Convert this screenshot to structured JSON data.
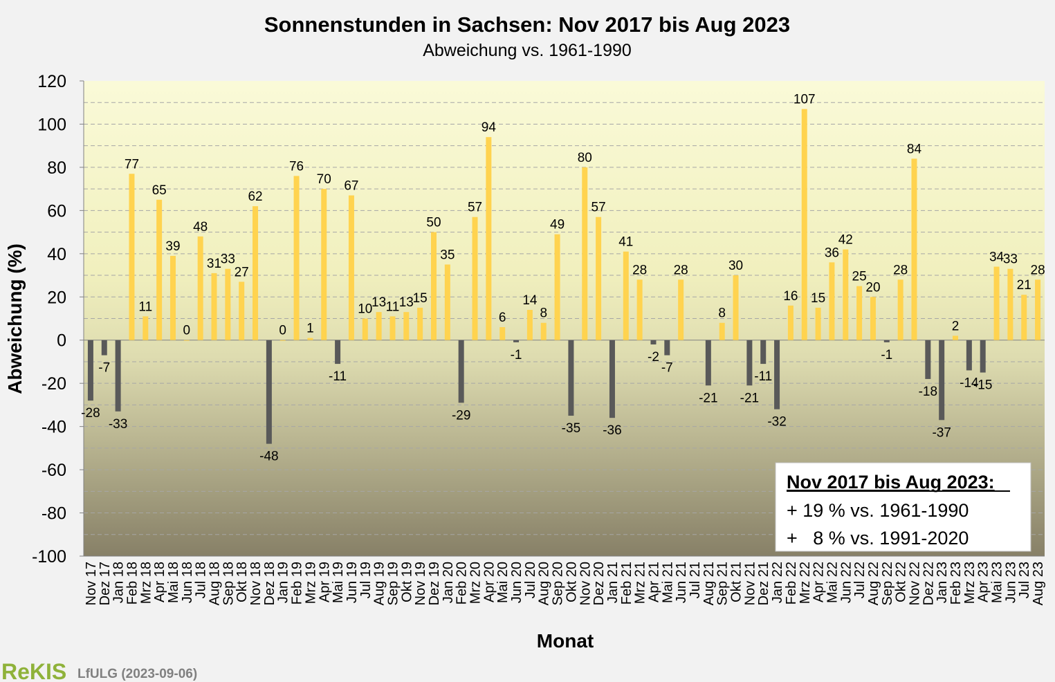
{
  "chart_data": {
    "type": "bar",
    "title": "Sonnenstunden in Sachsen: Nov 2017 bis Aug 2023",
    "subtitle": "Abweichung vs. 1961-1990",
    "xlabel": "Monat",
    "ylabel": "Abweichung (%)",
    "ylim": [
      -100,
      120
    ],
    "yticks": [
      "120",
      "100",
      "80",
      "60",
      "40",
      "20",
      "0",
      "-20",
      "-40",
      "-60",
      "-80",
      "-100"
    ],
    "grid": "dashed horizontal",
    "colors": {
      "positive": "#ffd34f",
      "negative": "#595959"
    },
    "categories": [
      "Nov 17",
      "Dez 17",
      "Jan 18",
      "Feb 18",
      "Mrz 18",
      "Apr 18",
      "Mai 18",
      "Jun 18",
      "Jul 18",
      "Aug 18",
      "Sep 18",
      "Okt 18",
      "Nov 18",
      "Dez 18",
      "Jan 19",
      "Feb 19",
      "Mrz 19",
      "Apr 19",
      "Mai 19",
      "Jun 19",
      "Jul 19",
      "Aug 19",
      "Sep 19",
      "Okt 19",
      "Nov 19",
      "Dez 19",
      "Jan 20",
      "Feb 20",
      "Mrz 20",
      "Apr 20",
      "Mai 20",
      "Jun 20",
      "Jul 20",
      "Aug 20",
      "Sep 20",
      "Okt 20",
      "Nov 20",
      "Dez 20",
      "Jan 21",
      "Feb 21",
      "Mrz 21",
      "Apr 21",
      "Mai 21",
      "Jun 21",
      "Jul 21",
      "Aug 21",
      "Sep 21",
      "Okt 21",
      "Nov 21",
      "Dez 21",
      "Jan 22",
      "Feb 22",
      "Mrz 22",
      "Apr 22",
      "Mai 22",
      "Jun 22",
      "Jul 22",
      "Aug 22",
      "Sep 22",
      "Okt 22",
      "Nov 22",
      "Dez 22",
      "Jan 23",
      "Feb 23",
      "Mrz 23",
      "Apr 23",
      "Mai 23",
      "Jun 23",
      "Jul 23",
      "Aug 23"
    ],
    "values": [
      -28,
      -7,
      -33,
      77,
      11,
      65,
      39,
      0,
      48,
      31,
      33,
      27,
      62,
      -48,
      0,
      76,
      1,
      70,
      -11,
      67,
      10,
      13,
      11,
      13,
      15,
      50,
      35,
      -29,
      57,
      94,
      6,
      -1,
      14,
      8,
      49,
      -35,
      80,
      57,
      -36,
      41,
      28,
      -2,
      -7,
      28,
      null,
      -21,
      8,
      30,
      -21,
      -11,
      -32,
      16,
      107,
      15,
      36,
      42,
      25,
      20,
      -1,
      28,
      84,
      -18,
      -37,
      2,
      -14,
      -15,
      34,
      33,
      21,
      28
    ],
    "labels": [
      "-28",
      "-7",
      "-33",
      "77",
      "11",
      "65",
      "39",
      "0",
      "48",
      "31",
      "33",
      "27",
      "62",
      "-48",
      "0",
      "76",
      "1",
      "70",
      "-11",
      "67",
      "10",
      "13",
      "11",
      "13",
      "15",
      "50",
      "35",
      "-29",
      "57",
      "94",
      "6",
      "-1",
      "14",
      "8",
      "49",
      "-35",
      "80",
      "57",
      "-36",
      "41",
      "28",
      "-2",
      "-7",
      "28",
      "",
      "-21",
      "8",
      "30",
      "-21",
      "-11",
      "-32",
      "16",
      "107",
      "15",
      "36",
      "42",
      "25",
      "20",
      "-1",
      "28",
      "84",
      "-18",
      "-37",
      "2",
      "-14",
      "-15",
      "34",
      "33",
      "21",
      "28"
    ]
  },
  "legend_box": {
    "heading": "Nov 2017 bis Aug 2023:",
    "line1": "+ 19 % vs. 1961-1990",
    "line2": "+   8 % vs. 1991-2020"
  },
  "footer": {
    "logo": "ReKIS",
    "credit": "LfULG (2023-09-06)"
  }
}
